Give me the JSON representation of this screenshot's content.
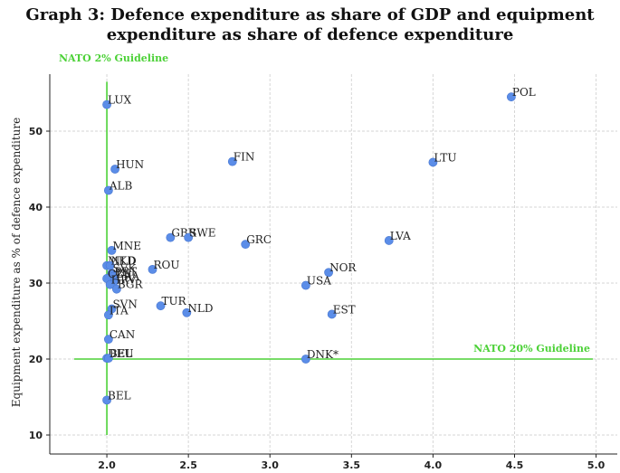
{
  "chart_data": {
    "type": "scatter",
    "title_line1": "Graph 3: Defence expenditure as share of GDP and equipment",
    "title_line2": "expenditure as share of defence expenditure",
    "xlabel": "",
    "ylabel": "Equipment expenditure as % of defence expenditure",
    "xlim": [
      1.65,
      5.13
    ],
    "ylim": [
      7.5,
      57.5
    ],
    "xticks": [
      "2.0",
      "2.5",
      "3.0",
      "3.5",
      "4.0",
      "4.5",
      "5.0"
    ],
    "yticks": [
      "10",
      "20",
      "30",
      "40",
      "50"
    ],
    "grid": true,
    "point_color": "#5b8de8",
    "guideline_color": "#4cd137",
    "guidelines": [
      {
        "name": "NATO 2% Guideline",
        "orientation": "vertical",
        "x": 2.0,
        "y_range": [
          10,
          56.5
        ]
      },
      {
        "name": "NATO 20% Guideline",
        "orientation": "horizontal",
        "y": 20.0,
        "x_range": [
          1.8,
          4.98
        ]
      }
    ],
    "points": [
      {
        "label": "LUX",
        "x": 2.0,
        "y": 53.5
      },
      {
        "label": "POL",
        "x": 4.48,
        "y": 54.5
      },
      {
        "label": "HUN",
        "x": 2.05,
        "y": 45.0
      },
      {
        "label": "FIN",
        "x": 2.77,
        "y": 46.0
      },
      {
        "label": "LTU",
        "x": 4.0,
        "y": 45.9
      },
      {
        "label": "ALB",
        "x": 2.01,
        "y": 42.2
      },
      {
        "label": "GBR",
        "x": 2.39,
        "y": 36.0
      },
      {
        "label": "SWE",
        "x": 2.5,
        "y": 36.0
      },
      {
        "label": "GRC",
        "x": 2.85,
        "y": 35.1
      },
      {
        "label": "LVA",
        "x": 3.73,
        "y": 35.6
      },
      {
        "label": "MNE",
        "x": 2.03,
        "y": 34.3
      },
      {
        "label": "MKD",
        "x": 2.0,
        "y": 32.3
      },
      {
        "label": "NLD",
        "x": 2.02,
        "y": 32.3
      },
      {
        "label": "ROU",
        "x": 2.28,
        "y": 31.8
      },
      {
        "label": "NOR",
        "x": 3.36,
        "y": 31.4
      },
      {
        "label": "SVK",
        "x": 2.03,
        "y": 31.3
      },
      {
        "label": "PRT",
        "x": 2.04,
        "y": 30.9
      },
      {
        "label": "FRA",
        "x": 2.05,
        "y": 30.3
      },
      {
        "label": "CZE",
        "x": 2.0,
        "y": 30.6
      },
      {
        "label": "HRV",
        "x": 2.02,
        "y": 29.8
      },
      {
        "label": "BGR",
        "x": 2.06,
        "y": 29.2
      },
      {
        "label": "USA",
        "x": 3.22,
        "y": 29.7
      },
      {
        "label": "TUR",
        "x": 2.33,
        "y": 27.0
      },
      {
        "label": "NLD",
        "x": 2.49,
        "y": 26.1
      },
      {
        "label": "SVN",
        "x": 2.03,
        "y": 26.6
      },
      {
        "label": "ITA",
        "x": 2.01,
        "y": 25.8
      },
      {
        "label": "EST",
        "x": 3.38,
        "y": 25.9
      },
      {
        "label": "CAN",
        "x": 2.01,
        "y": 22.6
      },
      {
        "label": "DEU",
        "x": 2.0,
        "y": 20.1
      },
      {
        "label": "BEL",
        "x": 2.01,
        "y": 20.1
      },
      {
        "label": "DNK*",
        "x": 3.22,
        "y": 20.0
      },
      {
        "label": "BEL",
        "x": 2.0,
        "y": 14.6
      }
    ]
  }
}
